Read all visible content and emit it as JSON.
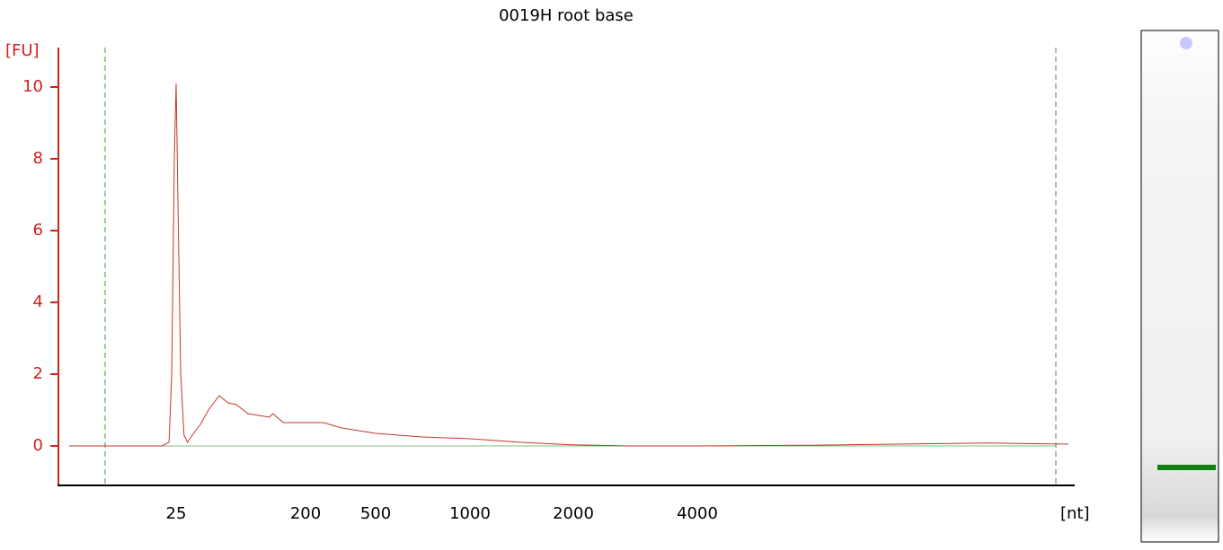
{
  "chart_data": {
    "type": "line",
    "title": "0019H root base",
    "ylabel": "[FU]",
    "xlabel": "[nt]",
    "xlim": [
      3.8,
      33000
    ],
    "ylim": [
      -1.1,
      11.1
    ],
    "xticks": [
      25,
      200,
      500,
      1000,
      2000,
      4000
    ],
    "yticks": [
      0,
      2,
      4,
      6,
      8,
      10
    ],
    "series": [
      {
        "color": "#c0392b",
        "x": [
          4.5,
          20,
          22.3,
          23.3,
          24.3,
          25,
          25.7,
          26.9,
          28.4,
          30,
          32.4,
          37,
          42,
          50,
          57.6,
          66,
          79,
          112,
          118,
          140,
          200,
          253,
          320,
          500,
          705,
          1000,
          1410,
          2000,
          2730,
          4000,
          7460,
          12300,
          20400,
          31900
        ],
        "values": [
          0,
          0,
          0.1,
          2,
          8,
          10.1,
          7,
          2,
          0.3,
          0.1,
          0.3,
          0.6,
          1.0,
          1.4,
          1.2,
          1.15,
          0.9,
          0.8,
          0.9,
          0.65,
          0.65,
          0.65,
          0.5,
          0.35,
          0.25,
          0.2,
          0.1,
          0.03,
          0,
          0,
          0.02,
          0.05,
          0.08,
          0.05
        ]
      }
    ]
  }
}
